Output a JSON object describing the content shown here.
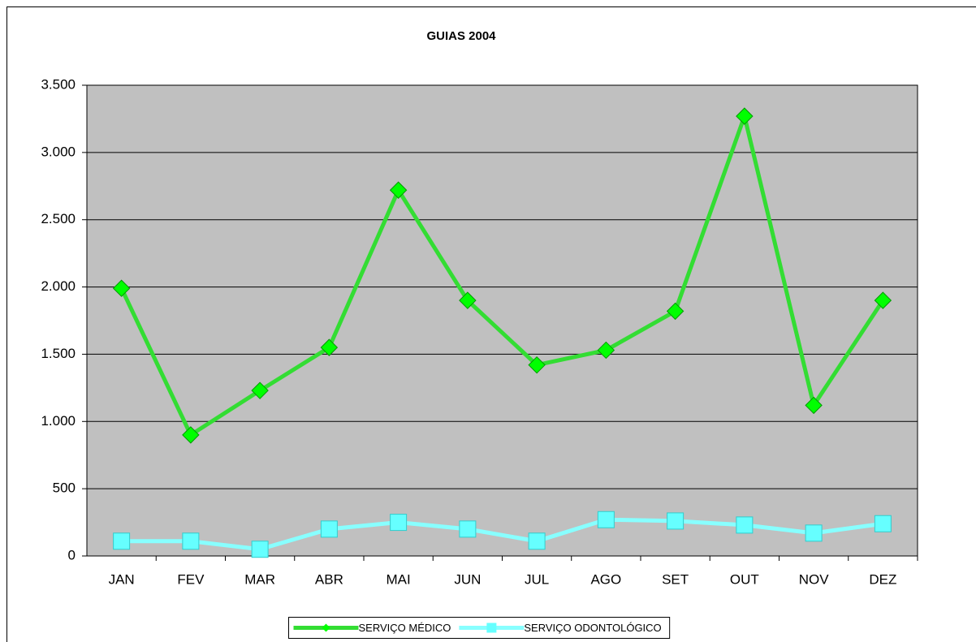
{
  "chart_data": {
    "type": "line",
    "title": "GUIAS 2004",
    "categories": [
      "JAN",
      "FEV",
      "MAR",
      "ABR",
      "MAI",
      "JUN",
      "JUL",
      "AGO",
      "SET",
      "OUT",
      "NOV",
      "DEZ"
    ],
    "series": [
      {
        "name": "SERVIÇO MÉDICO",
        "color": "#00ff00",
        "line_color": "#33dd33",
        "marker": "diamond",
        "values": [
          1990,
          900,
          1230,
          1550,
          2720,
          1900,
          1420,
          1530,
          1820,
          3270,
          1120,
          1900
        ]
      },
      {
        "name": "SERVIÇO ODONTOLÓGICO",
        "color": "#66ffff",
        "line_color": "#88ffff",
        "marker": "square",
        "values": [
          110,
          110,
          50,
          200,
          250,
          200,
          110,
          270,
          260,
          230,
          170,
          240
        ]
      }
    ],
    "ylim": [
      0,
      3500
    ],
    "yticks": [
      0,
      500,
      {
        "value": 1000,
        "label": "1.000"
      },
      {
        "value": 1500,
        "label": "1.500"
      },
      {
        "value": 2000,
        "label": "2.000"
      },
      {
        "value": 2500,
        "label": "2.500"
      },
      {
        "value": 3000,
        "label": "3.000"
      },
      {
        "value": 3500,
        "label": "3.500"
      }
    ],
    "grid": true,
    "plot_background": "#c0c0c0",
    "legend": "bottom"
  }
}
